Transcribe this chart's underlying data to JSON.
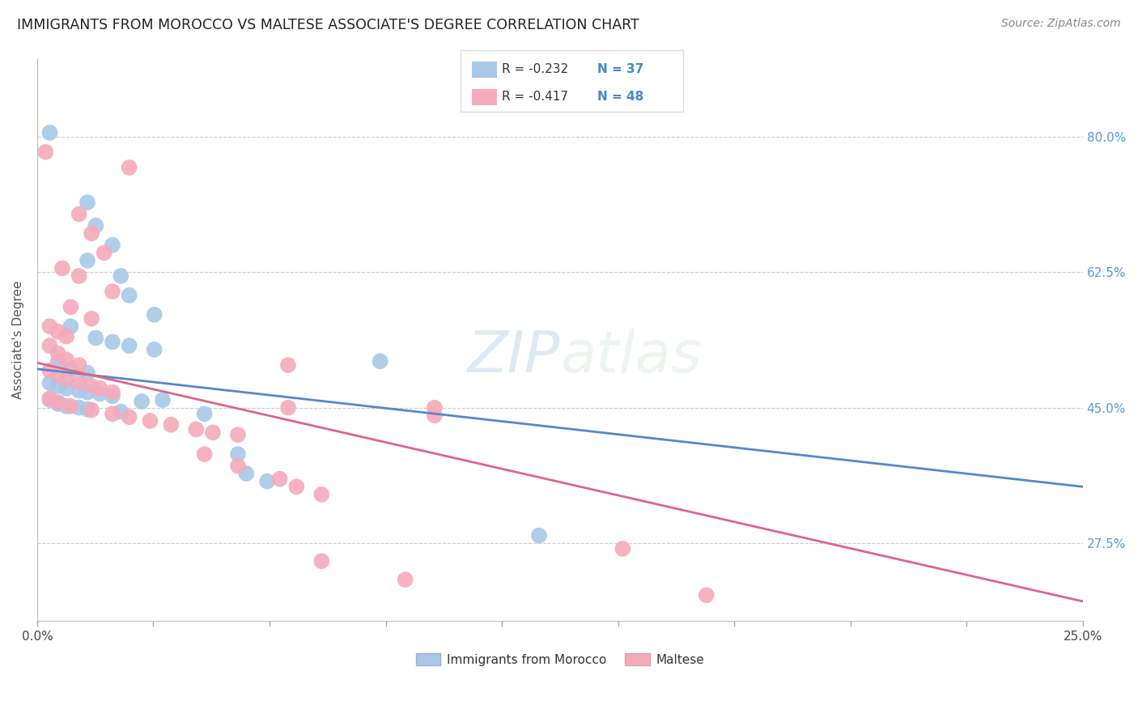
{
  "title": "IMMIGRANTS FROM MOROCCO VS MALTESE ASSOCIATE'S DEGREE CORRELATION CHART",
  "source": "Source: ZipAtlas.com",
  "ylabel": "Associate's Degree",
  "ytick_labels": [
    "80.0%",
    "62.5%",
    "45.0%",
    "27.5%"
  ],
  "ytick_values": [
    0.8,
    0.625,
    0.45,
    0.275
  ],
  "xtick_labels": [
    "0.0%",
    "",
    "",
    "",
    "",
    "",
    "",
    "",
    "",
    "25.0%"
  ],
  "xlim": [
    0.0,
    0.25
  ],
  "ylim": [
    0.175,
    0.9
  ],
  "watermark": "ZIPatlas",
  "legend_blue_r": "R = -0.232",
  "legend_blue_n": "N = 37",
  "legend_pink_r": "R = -0.417",
  "legend_pink_n": "N = 48",
  "legend_blue_label": "Immigrants from Morocco",
  "legend_pink_label": "Maltese",
  "blue_color": "#a8c8e8",
  "pink_color": "#f5aabb",
  "line_blue_color": "#5588cc",
  "line_pink_color": "#dd6688",
  "blue_scatter": [
    [
      0.003,
      0.805
    ],
    [
      0.012,
      0.715
    ],
    [
      0.014,
      0.685
    ],
    [
      0.018,
      0.66
    ],
    [
      0.012,
      0.64
    ],
    [
      0.02,
      0.62
    ],
    [
      0.022,
      0.595
    ],
    [
      0.028,
      0.57
    ],
    [
      0.008,
      0.555
    ],
    [
      0.014,
      0.54
    ],
    [
      0.018,
      0.535
    ],
    [
      0.022,
      0.53
    ],
    [
      0.028,
      0.525
    ],
    [
      0.005,
      0.51
    ],
    [
      0.008,
      0.5
    ],
    [
      0.012,
      0.495
    ],
    [
      0.003,
      0.482
    ],
    [
      0.005,
      0.478
    ],
    [
      0.007,
      0.475
    ],
    [
      0.01,
      0.472
    ],
    [
      0.012,
      0.47
    ],
    [
      0.015,
      0.468
    ],
    [
      0.018,
      0.465
    ],
    [
      0.003,
      0.46
    ],
    [
      0.005,
      0.455
    ],
    [
      0.007,
      0.452
    ],
    [
      0.01,
      0.45
    ],
    [
      0.012,
      0.448
    ],
    [
      0.02,
      0.445
    ],
    [
      0.025,
      0.458
    ],
    [
      0.03,
      0.46
    ],
    [
      0.04,
      0.442
    ],
    [
      0.082,
      0.51
    ],
    [
      0.048,
      0.39
    ],
    [
      0.05,
      0.365
    ],
    [
      0.055,
      0.355
    ],
    [
      0.12,
      0.285
    ]
  ],
  "pink_scatter": [
    [
      0.002,
      0.78
    ],
    [
      0.022,
      0.76
    ],
    [
      0.01,
      0.7
    ],
    [
      0.013,
      0.675
    ],
    [
      0.016,
      0.65
    ],
    [
      0.006,
      0.63
    ],
    [
      0.01,
      0.62
    ],
    [
      0.018,
      0.6
    ],
    [
      0.008,
      0.58
    ],
    [
      0.013,
      0.565
    ],
    [
      0.003,
      0.555
    ],
    [
      0.005,
      0.548
    ],
    [
      0.007,
      0.542
    ],
    [
      0.003,
      0.53
    ],
    [
      0.005,
      0.52
    ],
    [
      0.007,
      0.512
    ],
    [
      0.01,
      0.505
    ],
    [
      0.003,
      0.498
    ],
    [
      0.005,
      0.492
    ],
    [
      0.007,
      0.487
    ],
    [
      0.01,
      0.483
    ],
    [
      0.013,
      0.478
    ],
    [
      0.015,
      0.475
    ],
    [
      0.018,
      0.47
    ],
    [
      0.003,
      0.462
    ],
    [
      0.005,
      0.457
    ],
    [
      0.008,
      0.452
    ],
    [
      0.013,
      0.447
    ],
    [
      0.018,
      0.442
    ],
    [
      0.022,
      0.438
    ],
    [
      0.027,
      0.433
    ],
    [
      0.032,
      0.428
    ],
    [
      0.038,
      0.422
    ],
    [
      0.042,
      0.418
    ],
    [
      0.048,
      0.415
    ],
    [
      0.06,
      0.505
    ],
    [
      0.06,
      0.45
    ],
    [
      0.04,
      0.39
    ],
    [
      0.048,
      0.375
    ],
    [
      0.058,
      0.358
    ],
    [
      0.062,
      0.348
    ],
    [
      0.068,
      0.338
    ],
    [
      0.095,
      0.45
    ],
    [
      0.095,
      0.44
    ],
    [
      0.14,
      0.268
    ],
    [
      0.068,
      0.252
    ],
    [
      0.088,
      0.228
    ],
    [
      0.16,
      0.208
    ]
  ],
  "blue_line": [
    [
      0.0,
      0.5
    ],
    [
      0.25,
      0.348
    ]
  ],
  "pink_line": [
    [
      0.0,
      0.508
    ],
    [
      0.25,
      0.2
    ]
  ]
}
